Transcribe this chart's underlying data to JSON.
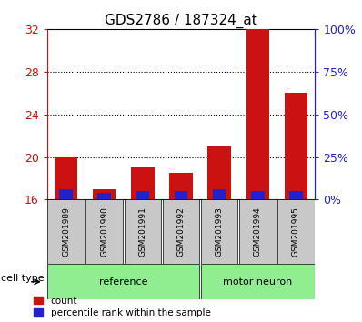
{
  "title": "GDS2786 / 187324_at",
  "samples": [
    "GSM201989",
    "GSM201990",
    "GSM201991",
    "GSM201992",
    "GSM201993",
    "GSM201994",
    "GSM201995"
  ],
  "count_values": [
    20.0,
    17.0,
    19.0,
    18.5,
    21.0,
    32.0,
    26.0
  ],
  "percentile_values": [
    6,
    4,
    5,
    5,
    6,
    5,
    5
  ],
  "ylim_left": [
    16,
    32
  ],
  "ylim_right": [
    0,
    100
  ],
  "yticks_left": [
    16,
    20,
    24,
    28,
    32
  ],
  "yticks_right": [
    0,
    25,
    50,
    75,
    100
  ],
  "ytick_labels_right": [
    "0%",
    "25%",
    "50%",
    "75%",
    "100%"
  ],
  "groups": [
    {
      "label": "reference",
      "start": 0,
      "end": 3
    },
    {
      "label": "motor neuron",
      "start": 4,
      "end": 6
    }
  ],
  "bar_color_red": "#cc1111",
  "bar_color_blue": "#2222cc",
  "bar_width": 0.6,
  "blue_bar_width": 0.35,
  "tick_bg_color": "#c8c8c8",
  "green_color": "#90EE90",
  "title_fontsize": 11,
  "left_axis_color": "#cc1111",
  "right_axis_color": "#2222cc",
  "dotted_yticks": [
    20,
    24,
    28
  ]
}
